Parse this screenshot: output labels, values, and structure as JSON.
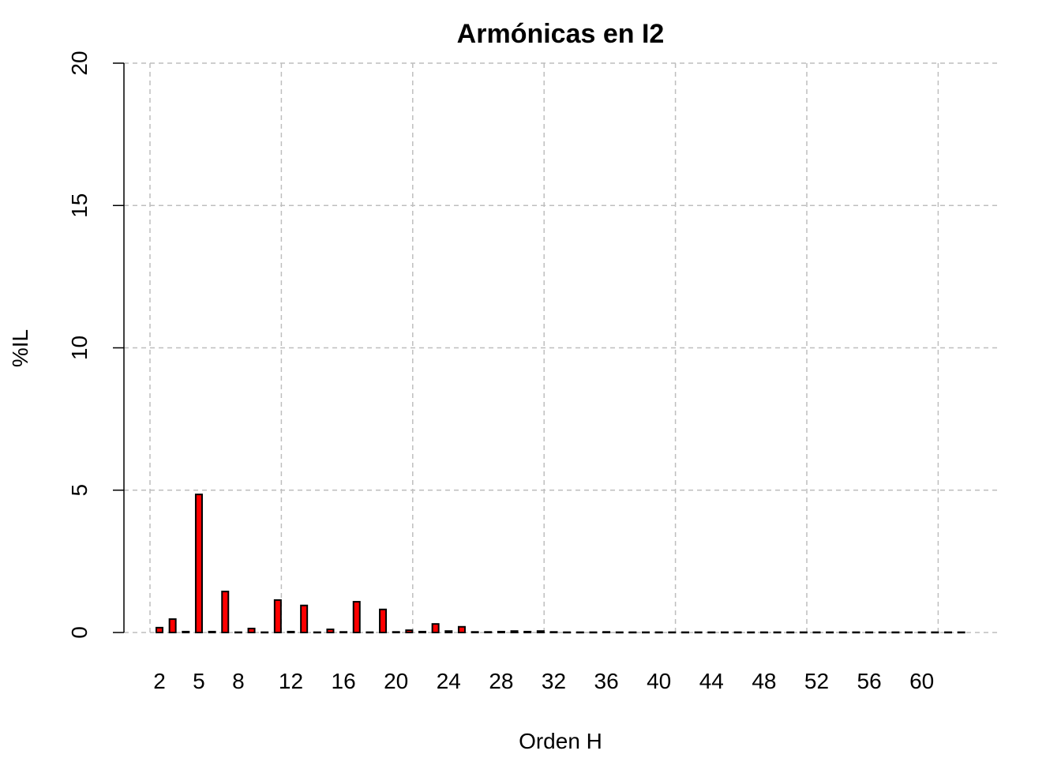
{
  "chart_data": {
    "type": "bar",
    "title": "Armónicas en I2",
    "xlabel": "Orden H",
    "ylabel": "%IL",
    "ylim": [
      0,
      20
    ],
    "yticks": [
      0,
      5,
      10,
      15,
      20
    ],
    "xtick_labels": [
      "2",
      "5",
      "8",
      "12",
      "16",
      "20",
      "24",
      "28",
      "32",
      "36",
      "40",
      "44",
      "48",
      "52",
      "56",
      "60"
    ],
    "grid": true,
    "bar_color": "#ff0000",
    "bar_border": "#000000",
    "grid_color": "#bebebe",
    "categories": [
      2,
      3,
      4,
      5,
      6,
      7,
      8,
      9,
      10,
      11,
      12,
      13,
      14,
      15,
      16,
      17,
      18,
      19,
      20,
      21,
      22,
      23,
      24,
      25,
      26,
      27,
      28,
      29,
      30,
      31,
      32,
      33,
      34,
      35,
      36,
      37,
      38,
      39,
      40,
      41,
      42,
      43,
      44,
      45,
      46,
      47,
      48,
      49,
      50,
      51,
      52,
      53,
      54,
      55,
      56,
      57,
      58,
      59,
      60,
      61,
      62,
      63
    ],
    "values": [
      0.17,
      0.47,
      0.03,
      4.85,
      0.03,
      1.44,
      0.01,
      0.14,
      0.01,
      1.14,
      0.03,
      0.95,
      0.01,
      0.11,
      0.02,
      1.08,
      0.01,
      0.81,
      0.02,
      0.08,
      0.03,
      0.3,
      0.05,
      0.2,
      0.02,
      0.02,
      0.03,
      0.05,
      0.03,
      0.05,
      0.02,
      0.01,
      0.01,
      0.01,
      0.02,
      0.01,
      0.01,
      0.01,
      0.01,
      0.01,
      0.01,
      0.01,
      0.01,
      0.01,
      0.01,
      0.01,
      0.01,
      0.01,
      0.01,
      0.01,
      0.01,
      0.01,
      0.01,
      0.01,
      0.01,
      0.01,
      0.01,
      0.01,
      0.01,
      0.01,
      0.01,
      0.01
    ]
  }
}
